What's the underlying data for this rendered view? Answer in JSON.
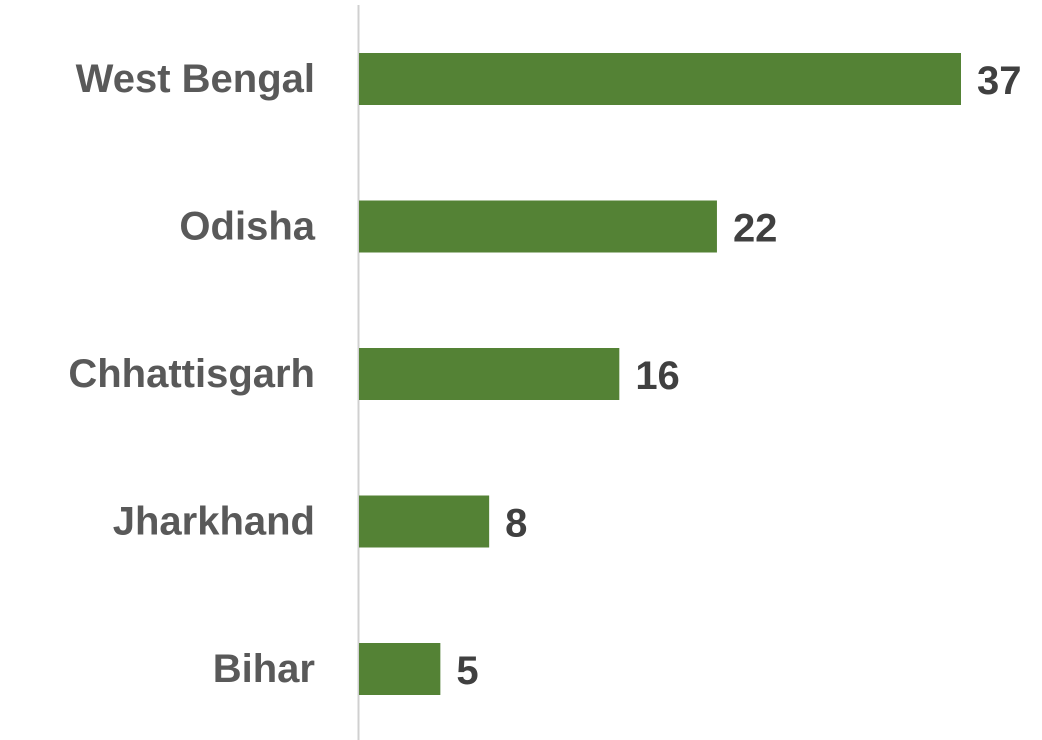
{
  "chart_data": {
    "type": "bar",
    "orientation": "horizontal",
    "categories": [
      "West Bengal",
      "Odisha",
      "Chhattisgarh",
      "Jharkhand",
      "Bihar"
    ],
    "values": [
      37,
      22,
      16,
      8,
      5
    ],
    "color": "#548235"
  }
}
